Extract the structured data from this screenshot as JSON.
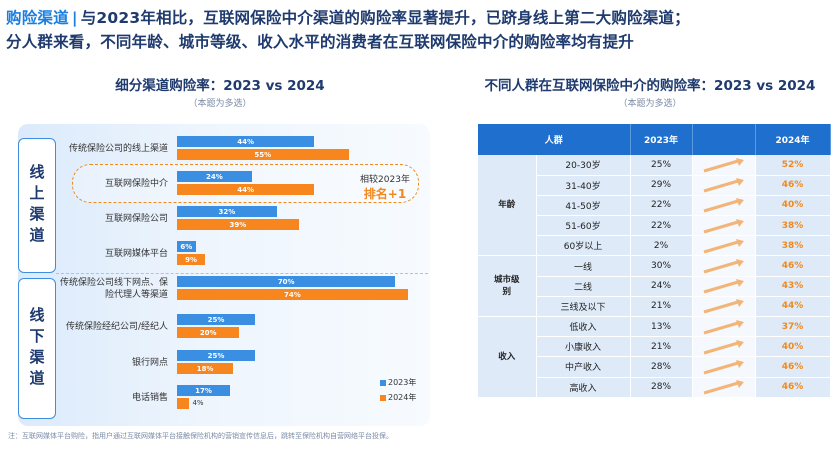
{
  "headline": {
    "key": "购险渠道",
    "sep": "|",
    "line1": "与2023年相比，互联网保险中介渠道的购险率显著提升，已跻身线上第二大购险渠道；",
    "line2": "分人群来看，不同年龄、城市等级、收入水平的消费者在互联网保险中介的购险率均有提升"
  },
  "left": {
    "title": "细分渠道购险率：2023 vs 2024",
    "subtitle": "（本题为多选）",
    "band_online": "线上渠道",
    "band_offline": "线下渠道",
    "note_line1": "相较2023年",
    "note_line2": "排名+1",
    "legend_2023": "2023年",
    "legend_2024": "2024年"
  },
  "right": {
    "title": "不同人群在互联网保险中介的购险率：2023 vs 2024",
    "subtitle": "（本题为多选）",
    "col_group": "人群",
    "col_2023": "2023年",
    "col_2024": "2024年",
    "rows": [
      {
        "group": "年龄",
        "span": 5,
        "label": "20-30岁",
        "v2023": "25%",
        "v2024": "52%"
      },
      {
        "group": "",
        "label": "31-40岁",
        "v2023": "29%",
        "v2024": "46%"
      },
      {
        "group": "",
        "label": "41-50岁",
        "v2023": "22%",
        "v2024": "40%"
      },
      {
        "group": "",
        "label": "51-60岁",
        "v2023": "22%",
        "v2024": "38%"
      },
      {
        "group": "",
        "label": "60岁以上",
        "v2023": "2%",
        "v2024": "38%"
      },
      {
        "group": "城市级别",
        "span": 3,
        "label": "一线",
        "v2023": "30%",
        "v2024": "46%"
      },
      {
        "group": "",
        "label": "二线",
        "v2023": "24%",
        "v2024": "43%"
      },
      {
        "group": "",
        "label": "三线及以下",
        "v2023": "21%",
        "v2024": "44%"
      },
      {
        "group": "收入",
        "span": 4,
        "label": "低收入",
        "v2023": "13%",
        "v2024": "37%"
      },
      {
        "group": "",
        "label": "小康收入",
        "v2023": "21%",
        "v2024": "40%"
      },
      {
        "group": "",
        "label": "中产收入",
        "v2023": "28%",
        "v2024": "46%"
      },
      {
        "group": "",
        "label": "高收入",
        "v2023": "28%",
        "v2024": "46%"
      }
    ]
  },
  "chart_data": {
    "type": "bar",
    "orientation": "horizontal",
    "title": "细分渠道购险率：2023 vs 2024",
    "categories": [
      "传统保险公司的线上渠道",
      "互联网保险中介",
      "互联网保险公司",
      "互联网媒体平台",
      "传统保险公司线下网点、保险代理人等渠道",
      "传统保险经纪公司/经纪人",
      "银行网点",
      "电话销售"
    ],
    "series": [
      {
        "name": "2023年",
        "values": [
          44,
          24,
          32,
          6,
          70,
          25,
          25,
          17
        ],
        "color": "#3b8fe3"
      },
      {
        "name": "2024年",
        "values": [
          55,
          44,
          39,
          9,
          74,
          20,
          18,
          4
        ],
        "color": "#f7861f"
      }
    ],
    "groups": [
      {
        "name": "线上渠道",
        "categories": [
          0,
          1,
          2,
          3
        ]
      },
      {
        "name": "线下渠道",
        "categories": [
          4,
          5,
          6,
          7
        ]
      }
    ],
    "unit": "%",
    "legend_position": "bottom-right"
  },
  "footnote": "注：互联网媒体平台购险，指用户通过互联网媒体平台接触保险机构的营销宣传信息后，跳转至保险机构自营网络平台投保。"
}
